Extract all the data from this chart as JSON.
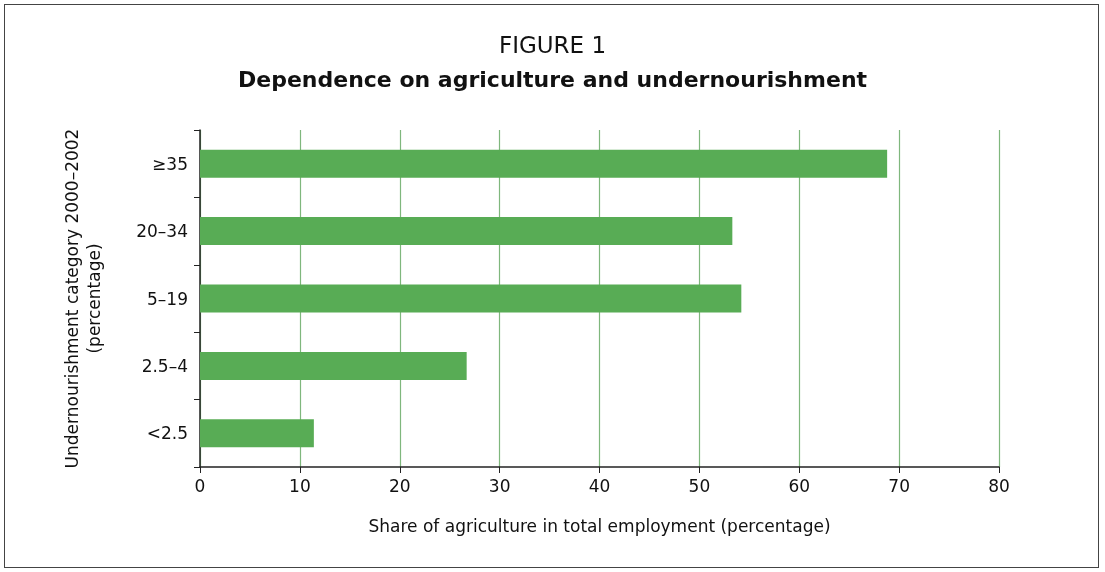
{
  "chart_data": {
    "type": "bar",
    "orientation": "horizontal",
    "title": "FIGURE 1",
    "subtitle": "Dependence on agriculture and undernourishment",
    "xlabel": "Share of agriculture in total employment (percentage)",
    "ylabel": "Undernourishment category 2000–2002\n(percentage)",
    "categories": [
      "≥35",
      "20–34",
      "5–19",
      "2.5–4",
      "<2.5"
    ],
    "values": [
      68.8,
      53.3,
      54.2,
      26.7,
      11.4
    ],
    "color": "#58ac55",
    "xlim": [
      0,
      80
    ],
    "xticks": [
      0,
      10,
      20,
      30,
      40,
      50,
      60,
      70,
      80
    ],
    "grid": "x"
  }
}
